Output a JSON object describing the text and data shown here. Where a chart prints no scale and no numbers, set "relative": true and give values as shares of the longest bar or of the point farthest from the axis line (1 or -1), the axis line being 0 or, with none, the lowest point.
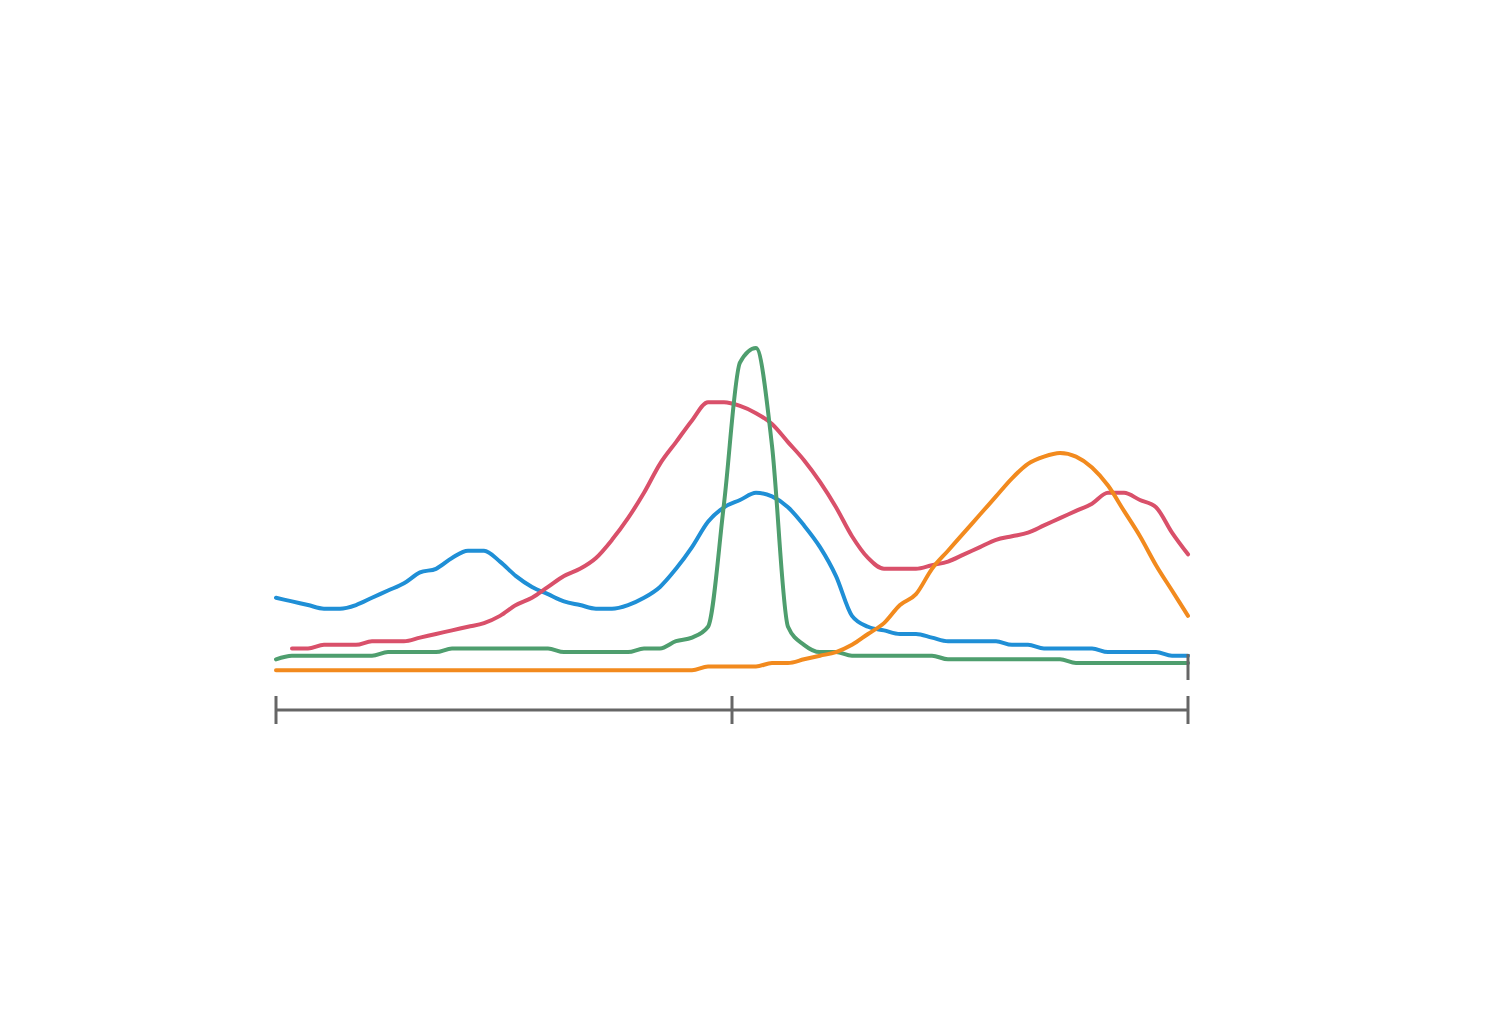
{
  "chart_data": {
    "type": "line",
    "relative": true,
    "categories": [
      null,
      null,
      null,
      null,
      null,
      null,
      null,
      null,
      null,
      null,
      null,
      null,
      null,
      null,
      null,
      null,
      null,
      null,
      null,
      null,
      null,
      null,
      null,
      null,
      null,
      null,
      null,
      null,
      null,
      null,
      null,
      null,
      null,
      null,
      null,
      null,
      null,
      null,
      null,
      null,
      null,
      null,
      null,
      null,
      null,
      null,
      null,
      null,
      null,
      null,
      null,
      null,
      null,
      null,
      null,
      null,
      null,
      null
    ],
    "series": [
      {
        "color": "#1f8fd6",
        "values": [
          0.31,
          0.3,
          0.29,
          0.28,
          0.28,
          0.29,
          0.31,
          0.33,
          0.35,
          0.38,
          0.39,
          0.42,
          0.44,
          0.44,
          0.41,
          0.37,
          0.34,
          0.32,
          0.3,
          0.29,
          0.28,
          0.28,
          0.29,
          0.31,
          0.34,
          0.39,
          0.45,
          0.52,
          0.56,
          0.58,
          0.6,
          0.59,
          0.56,
          0.51,
          0.45,
          0.37,
          0.26,
          0.23,
          0.22,
          0.21,
          0.21,
          0.2,
          0.19,
          0.19,
          0.19,
          0.19,
          0.18,
          0.18,
          0.17,
          0.17,
          0.17,
          0.17,
          0.16,
          0.16,
          0.16,
          0.16,
          0.15,
          0.15
        ]
      },
      {
        "color": "#d9506a",
        "values": [
          null,
          0.17,
          0.17,
          0.18,
          0.18,
          0.18,
          0.19,
          0.19,
          0.19,
          0.2,
          0.21,
          0.22,
          0.23,
          0.24,
          0.26,
          0.29,
          0.31,
          0.34,
          0.37,
          0.39,
          0.42,
          0.47,
          0.53,
          0.6,
          0.68,
          0.74,
          0.8,
          0.85,
          0.85,
          0.84,
          0.82,
          0.79,
          0.74,
          0.69,
          0.63,
          0.56,
          0.48,
          0.42,
          0.39,
          0.39,
          0.39,
          0.4,
          0.41,
          0.43,
          0.45,
          0.47,
          0.48,
          0.49,
          0.51,
          0.53,
          0.55,
          0.57,
          0.6,
          0.6,
          0.58,
          0.56,
          0.49,
          0.43
        ]
      },
      {
        "color": "#4e9e6e",
        "values": [
          0.14,
          0.15,
          0.15,
          0.15,
          0.15,
          0.15,
          0.15,
          0.16,
          0.16,
          0.16,
          0.16,
          0.17,
          0.17,
          0.17,
          0.17,
          0.17,
          0.17,
          0.17,
          0.16,
          0.16,
          0.16,
          0.16,
          0.16,
          0.17,
          0.17,
          0.19,
          0.2,
          0.23,
          0.57,
          0.96,
          1,
          0.73,
          0.23,
          0.18,
          0.16,
          0.16,
          0.15,
          0.15,
          0.15,
          0.15,
          0.15,
          0.15,
          0.14,
          0.14,
          0.14,
          0.14,
          0.14,
          0.14,
          0.14,
          0.14,
          0.13,
          0.13,
          0.13,
          0.13,
          0.13,
          0.13,
          0.13,
          0.13
        ]
      },
      {
        "color": "#f28a1e",
        "values": [
          0.11,
          0.11,
          0.11,
          0.11,
          0.11,
          0.11,
          0.11,
          0.11,
          0.11,
          0.11,
          0.11,
          0.11,
          0.11,
          0.11,
          0.11,
          0.11,
          0.11,
          0.11,
          0.11,
          0.11,
          0.11,
          0.11,
          0.11,
          0.11,
          0.11,
          0.11,
          0.11,
          0.12,
          0.12,
          0.12,
          0.12,
          0.13,
          0.13,
          0.14,
          0.15,
          0.16,
          0.18,
          0.21,
          0.24,
          0.29,
          0.32,
          0.39,
          0.44,
          0.49,
          0.54,
          0.59,
          0.64,
          0.68,
          0.7,
          0.71,
          0.7,
          0.67,
          0.62,
          0.55,
          0.48,
          0.4,
          0.33,
          0.26
        ]
      }
    ]
  }
}
